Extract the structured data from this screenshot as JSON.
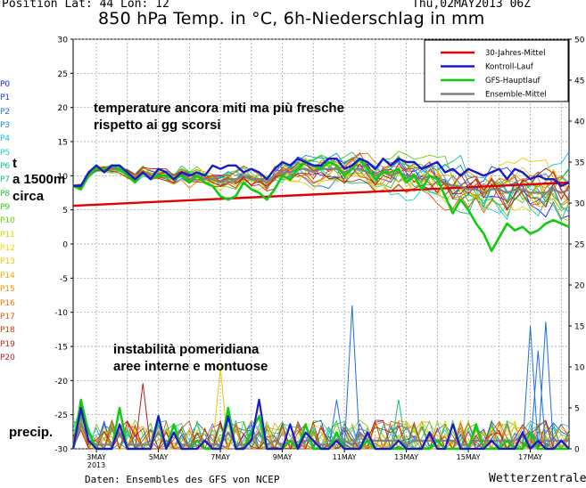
{
  "header": {
    "position": "Position  Lat: 44 Lon: 12",
    "datetime": "Thu,02MAY2013 06Z",
    "title": "850 hPa Temp. in °C, 6h-Niederschlag in mm"
  },
  "footer": {
    "source": "Daten: Ensembles des GFS von NCEP",
    "brand": "Wetterzentrale"
  },
  "members": [
    {
      "label": "P0",
      "color": "#1a1aff"
    },
    {
      "label": "P1",
      "color": "#1f3cf0"
    },
    {
      "label": "P2",
      "color": "#2b6be0"
    },
    {
      "label": "P3",
      "color": "#1f8fe0"
    },
    {
      "label": "P4",
      "color": "#18b8e8"
    },
    {
      "label": "P5",
      "color": "#15d6d6"
    },
    {
      "label": "P6",
      "color": "#12c0a0"
    },
    {
      "label": "P7",
      "color": "#13c070"
    },
    {
      "label": "P8",
      "color": "#20c040"
    },
    {
      "label": "P9",
      "color": "#30cc10"
    },
    {
      "label": "P10",
      "color": "#66cc00"
    },
    {
      "label": "P11",
      "color": "#c8d800"
    },
    {
      "label": "P12",
      "color": "#e8d800"
    },
    {
      "label": "P13",
      "color": "#f0c800"
    },
    {
      "label": "P14",
      "color": "#f0a800"
    },
    {
      "label": "P15",
      "color": "#f09000"
    },
    {
      "label": "P16",
      "color": "#e87800"
    },
    {
      "label": "P17",
      "color": "#d85a00"
    },
    {
      "label": "P18",
      "color": "#c83a10"
    },
    {
      "label": "P19",
      "color": "#b02818"
    },
    {
      "label": "P20",
      "color": "#c01818"
    }
  ],
  "annotations": {
    "temp_note_line1": "temperature ancora miti ma più fresche",
    "temp_note_line2": "rispetto ai gg scorsi",
    "t_label_1": "t",
    "t_label_2": "a 1500m",
    "t_label_3": "circa",
    "precip_note_line1": "instabilità pomeridiana",
    "precip_note_line2": "aree interne e montuose",
    "precip_label": "precip."
  },
  "chart_data": {
    "type": "line",
    "xlabel": "",
    "ylabel": "",
    "y2label": "",
    "ylim": [
      -30,
      30
    ],
    "y2lim": [
      0,
      50
    ],
    "yticks": [
      30,
      25,
      20,
      15,
      10,
      5,
      0,
      -5,
      -10,
      -15,
      -20,
      -25,
      -30
    ],
    "y2ticks": [
      50,
      45,
      40,
      35,
      30,
      25,
      20,
      15,
      10,
      5,
      0
    ],
    "x_steps": 64,
    "step_hours": 6,
    "start": "2013-05-02 06Z",
    "xtick_labels": [
      {
        "step": 3,
        "label": "3MAY",
        "sub": "2013"
      },
      {
        "step": 11,
        "label": "5MAY"
      },
      {
        "step": 19,
        "label": "7MAY"
      },
      {
        "step": 27,
        "label": "9MAY"
      },
      {
        "step": 35,
        "label": "11MAY"
      },
      {
        "step": 43,
        "label": "13MAY"
      },
      {
        "step": 51,
        "label": "15MAY"
      },
      {
        "step": 59,
        "label": "17MAY"
      }
    ],
    "grid": true,
    "legend_position": "top-right",
    "legend": [
      {
        "name": "30-Jahres-Mittel",
        "color": "#e00000"
      },
      {
        "name": "Kontroll-Lauf",
        "color": "#1a1acc"
      },
      {
        "name": "GFS-Hauptlauf",
        "color": "#10cc10"
      },
      {
        "name": "Ensemble-Mittel",
        "color": "#808080"
      }
    ],
    "temp_climatology": {
      "name": "30-Jahres-Mittel",
      "start": 5.6,
      "end": 9.0
    },
    "temp_control": {
      "name": "Kontroll-Lauf",
      "values": [
        8.5,
        8.5,
        10.5,
        11.5,
        10.5,
        11.5,
        11.5,
        10.5,
        9.5,
        10.5,
        9.5,
        11,
        10.5,
        9.5,
        10.5,
        10,
        10.5,
        10,
        11.5,
        11,
        11.5,
        11.5,
        10.5,
        11,
        10.5,
        9.5,
        11,
        12,
        11.5,
        12.5,
        12,
        11.5,
        11.5,
        12.5,
        12.5,
        11,
        11.5,
        12.5,
        12,
        11,
        12.5,
        11.5,
        12.5,
        12,
        12,
        11,
        11.5,
        12,
        10.5,
        11,
        10,
        11,
        10.5,
        10,
        10.5,
        11,
        9.5,
        11,
        10.5,
        9.5,
        10,
        9.5,
        9.5,
        8.5,
        9
      ]
    },
    "temp_main": {
      "name": "GFS-Hauptlauf",
      "values": [
        8.5,
        8,
        10,
        11,
        11,
        11.5,
        11,
        10,
        9,
        10.5,
        9.5,
        10,
        10,
        9.5,
        10,
        9,
        10,
        9,
        8.5,
        7,
        6.5,
        7,
        9,
        8,
        7.5,
        6.5,
        8,
        10,
        9.5,
        11,
        12,
        11.5,
        11,
        12,
        11.5,
        10,
        11,
        12.5,
        11,
        9.5,
        10.5,
        10.5,
        11,
        9,
        10,
        8,
        10,
        9.5,
        7,
        4.5,
        6.5,
        5,
        3,
        1.5,
        -1,
        1,
        3,
        2,
        2.5,
        1.5,
        2,
        3,
        3.5,
        3,
        2.5
      ]
    },
    "temp_ens_mean": {
      "name": "Ensemble-Mittel",
      "values": [
        8.5,
        8.5,
        10,
        11,
        11,
        11,
        11,
        10.5,
        9.5,
        10.5,
        10,
        10,
        10,
        9.5,
        10.5,
        9.5,
        10,
        9.5,
        9.5,
        9,
        9.5,
        9.5,
        10,
        9.5,
        9.5,
        9,
        10,
        10.5,
        10.5,
        11,
        11,
        10.5,
        11,
        11,
        11,
        10.5,
        11,
        11,
        10.5,
        10,
        10.5,
        10,
        10.5,
        10,
        10,
        9.5,
        10,
        9.5,
        9,
        8.5,
        8.5,
        8,
        8,
        7.5,
        8,
        8,
        7.5,
        8,
        8,
        7.5,
        7.5,
        7.5,
        8,
        7.5,
        8
      ]
    },
    "precip_control": {
      "name": "Kontroll-Lauf",
      "values": [
        0,
        5,
        1,
        0,
        0,
        0,
        3,
        0,
        0,
        0,
        0,
        4,
        0,
        2,
        0,
        0,
        0,
        1,
        0,
        0,
        4,
        0,
        0,
        1,
        6,
        0,
        0,
        0,
        3,
        0,
        2,
        1,
        0,
        0,
        1,
        0,
        0,
        0,
        2,
        0,
        0,
        0,
        1,
        0,
        0,
        0,
        2,
        0,
        0,
        3,
        0,
        0,
        0,
        0,
        1,
        0,
        0,
        0,
        2,
        0,
        1,
        0,
        0,
        1,
        0
      ]
    },
    "precip_main": {
      "name": "GFS-Hauptlauf",
      "values": [
        0,
        6,
        2,
        0,
        0,
        0,
        5,
        0,
        0,
        0,
        0,
        4,
        0,
        3,
        0,
        0,
        1,
        0,
        0,
        0,
        5,
        0,
        0,
        2,
        4,
        0,
        0,
        0,
        1,
        0,
        3,
        0,
        0,
        0,
        2,
        0,
        0,
        0,
        1,
        0,
        0,
        0,
        0,
        0,
        0,
        0,
        0,
        1,
        0,
        0,
        0,
        0,
        3,
        0,
        0,
        0,
        1,
        0,
        0,
        2,
        0,
        0,
        0,
        0,
        0
      ]
    },
    "precip_ens_mean": {
      "name": "Ensemble-Mittel",
      "values": [
        0,
        3,
        1,
        0.5,
        0.5,
        0.5,
        2,
        0.5,
        0.5,
        0.5,
        0.5,
        2,
        0.5,
        2,
        0.5,
        0.5,
        1,
        1,
        0.5,
        0.5,
        2,
        0.5,
        0.5,
        1,
        2,
        0.5,
        1,
        0.5,
        1,
        0.5,
        1,
        1,
        0.5,
        0.5,
        1,
        1,
        0.5,
        2,
        1,
        1,
        1,
        1,
        1,
        0.5,
        1,
        1,
        1,
        1,
        1,
        1,
        0.5,
        0.5,
        1,
        1,
        1,
        1,
        1,
        1,
        1.5,
        2,
        1,
        1,
        1,
        1,
        1
      ]
    },
    "precip_peaks": [
      {
        "step": 36,
        "value": 17.5,
        "color": "#1f6fd0"
      },
      {
        "step": 59,
        "value": 15,
        "color": "#1f6fd0"
      },
      {
        "step": 60,
        "value": 12,
        "color": "#1f6fd0"
      },
      {
        "step": 61,
        "value": 15.5,
        "color": "#1f6fd0"
      },
      {
        "step": 34,
        "value": 6,
        "color": "#2b6be0"
      },
      {
        "step": 19,
        "value": 10,
        "color": "#f0c800"
      },
      {
        "step": 9,
        "value": 8,
        "color": "#c01818"
      },
      {
        "step": 42,
        "value": 6,
        "color": "#13c070"
      }
    ]
  }
}
